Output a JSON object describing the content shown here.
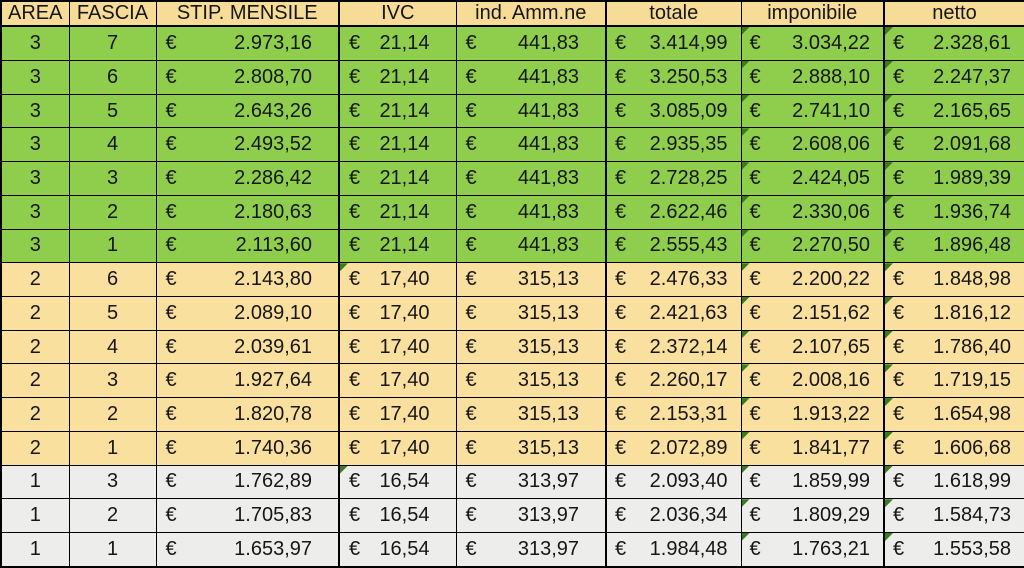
{
  "table": {
    "currency_symbol": "€",
    "colors": {
      "header_bg": "#F7DC98",
      "area3_row_bg": "#8FCE4D",
      "area2_row_bg": "#FAE09E",
      "area1_row_bg": "#EDEDEB",
      "border": "#000000",
      "flag_triangle": "#3C7A1E"
    },
    "columns": [
      {
        "key": "area",
        "label": "AREA"
      },
      {
        "key": "fascia",
        "label": "FASCIA"
      },
      {
        "key": "stip",
        "label": "STIP. MENSILE"
      },
      {
        "key": "ivc",
        "label": "IVC"
      },
      {
        "key": "ind",
        "label": "ind. Amm.ne"
      },
      {
        "key": "totale",
        "label": "totale"
      },
      {
        "key": "imponibile",
        "label": "imponibile"
      },
      {
        "key": "netto",
        "label": "netto"
      }
    ],
    "rows": [
      {
        "area": "3",
        "fascia": "7",
        "stip": "2.973,16",
        "ivc": "21,14",
        "ind": "441,83",
        "totale": "3.414,99",
        "imponibile": "3.034,22",
        "netto": "2.328,61",
        "flags": [
          "imponibile",
          "netto"
        ]
      },
      {
        "area": "3",
        "fascia": "6",
        "stip": "2.808,70",
        "ivc": "21,14",
        "ind": "441,83",
        "totale": "3.250,53",
        "imponibile": "2.888,10",
        "netto": "2.247,37",
        "flags": [
          "imponibile",
          "netto"
        ]
      },
      {
        "area": "3",
        "fascia": "5",
        "stip": "2.643,26",
        "ivc": "21,14",
        "ind": "441,83",
        "totale": "3.085,09",
        "imponibile": "2.741,10",
        "netto": "2.165,65",
        "flags": [
          "imponibile",
          "netto"
        ]
      },
      {
        "area": "3",
        "fascia": "4",
        "stip": "2.493,52",
        "ivc": "21,14",
        "ind": "441,83",
        "totale": "2.935,35",
        "imponibile": "2.608,06",
        "netto": "2.091,68",
        "flags": [
          "imponibile",
          "netto"
        ]
      },
      {
        "area": "3",
        "fascia": "3",
        "stip": "2.286,42",
        "ivc": "21,14",
        "ind": "441,83",
        "totale": "2.728,25",
        "imponibile": "2.424,05",
        "netto": "1.989,39",
        "flags": [
          "imponibile",
          "netto"
        ]
      },
      {
        "area": "3",
        "fascia": "2",
        "stip": "2.180,63",
        "ivc": "21,14",
        "ind": "441,83",
        "totale": "2.622,46",
        "imponibile": "2.330,06",
        "netto": "1.936,74",
        "flags": [
          "imponibile",
          "netto"
        ]
      },
      {
        "area": "3",
        "fascia": "1",
        "stip": "2.113,60",
        "ivc": "21,14",
        "ind": "441,83",
        "totale": "2.555,43",
        "imponibile": "2.270,50",
        "netto": "1.896,48",
        "flags": [
          "imponibile",
          "netto"
        ]
      },
      {
        "area": "2",
        "fascia": "6",
        "stip": "2.143,80",
        "ivc": "17,40",
        "ind": "315,13",
        "totale": "2.476,33",
        "imponibile": "2.200,22",
        "netto": "1.848,98",
        "flags": [
          "ivc",
          "imponibile",
          "netto"
        ]
      },
      {
        "area": "2",
        "fascia": "5",
        "stip": "2.089,10",
        "ivc": "17,40",
        "ind": "315,13",
        "totale": "2.421,63",
        "imponibile": "2.151,62",
        "netto": "1.816,12",
        "flags": [
          "imponibile",
          "netto"
        ]
      },
      {
        "area": "2",
        "fascia": "4",
        "stip": "2.039,61",
        "ivc": "17,40",
        "ind": "315,13",
        "totale": "2.372,14",
        "imponibile": "2.107,65",
        "netto": "1.786,40",
        "flags": [
          "imponibile",
          "netto"
        ]
      },
      {
        "area": "2",
        "fascia": "3",
        "stip": "1.927,64",
        "ivc": "17,40",
        "ind": "315,13",
        "totale": "2.260,17",
        "imponibile": "2.008,16",
        "netto": "1.719,15",
        "flags": [
          "imponibile",
          "netto"
        ]
      },
      {
        "area": "2",
        "fascia": "2",
        "stip": "1.820,78",
        "ivc": "17,40",
        "ind": "315,13",
        "totale": "2.153,31",
        "imponibile": "1.913,22",
        "netto": "1.654,98",
        "flags": [
          "imponibile",
          "netto"
        ]
      },
      {
        "area": "2",
        "fascia": "1",
        "stip": "1.740,36",
        "ivc": "17,40",
        "ind": "315,13",
        "totale": "2.072,89",
        "imponibile": "1.841,77",
        "netto": "1.606,68",
        "flags": [
          "imponibile",
          "netto"
        ]
      },
      {
        "area": "1",
        "fascia": "3",
        "stip": "1.762,89",
        "ivc": "16,54",
        "ind": "313,97",
        "totale": "2.093,40",
        "imponibile": "1.859,99",
        "netto": "1.618,99",
        "flags": [
          "ivc",
          "imponibile",
          "netto"
        ]
      },
      {
        "area": "1",
        "fascia": "2",
        "stip": "1.705,83",
        "ivc": "16,54",
        "ind": "313,97",
        "totale": "2.036,34",
        "imponibile": "1.809,29",
        "netto": "1.584,73",
        "flags": [
          "imponibile",
          "netto"
        ]
      },
      {
        "area": "1",
        "fascia": "1",
        "stip": "1.653,97",
        "ivc": "16,54",
        "ind": "313,97",
        "totale": "1.984,48",
        "imponibile": "1.763,21",
        "netto": "1.553,58",
        "flags": [
          "imponibile",
          "netto"
        ]
      }
    ]
  }
}
